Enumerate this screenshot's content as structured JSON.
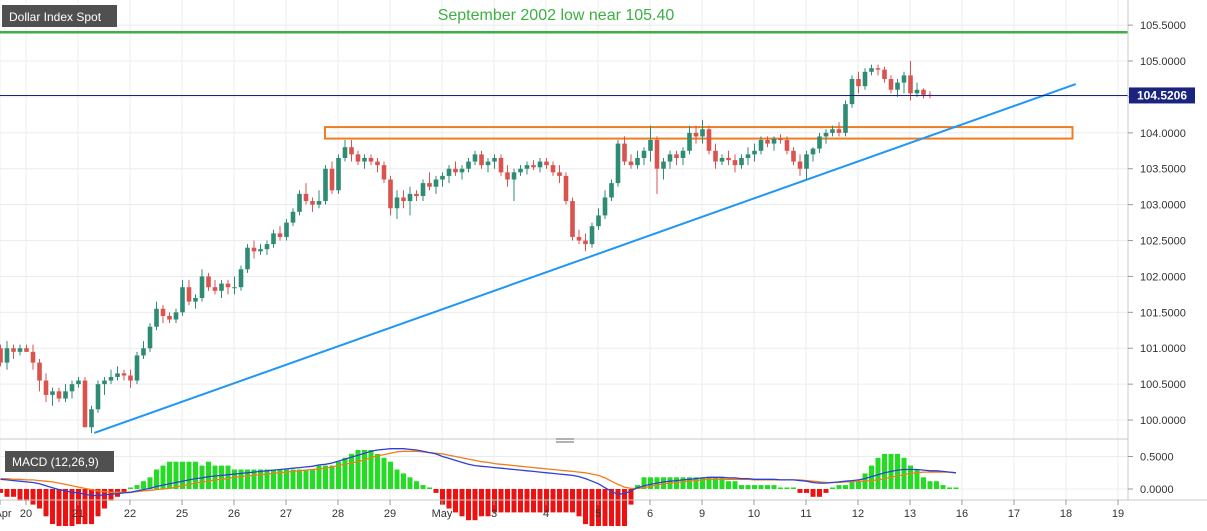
{
  "main_chart": {
    "symbol": "Dollar Index Spot",
    "annotation": "September 2002 low near 105.40",
    "current_price_label": "104.5206"
  },
  "macd_panel": {
    "label": "MACD (12,26,9)",
    "y_ticks": [
      {
        "value": 0.5,
        "label": "0.5000"
      },
      {
        "value": 0.0,
        "label": "0.0000"
      }
    ]
  },
  "colors": {
    "up_candle": "#2e8b74",
    "down_candle": "#d9534f",
    "trendline": "#2196f3",
    "resistance_line": "#3cb043",
    "zone_border": "#ef7d22",
    "price_line": "#1a237e",
    "macd_line": "#2f3fd6",
    "signal_line": "#f07d1a",
    "hist_pos": "#22dd22",
    "hist_neg": "#ee1111"
  },
  "chart_data": {
    "type": "candlestick",
    "y_range": [
      99.75,
      105.85
    ],
    "y_ticks": [
      {
        "value": 100.0,
        "label": "100.0000"
      },
      {
        "value": 100.5,
        "label": "100.5000"
      },
      {
        "value": 101.0,
        "label": "101.0000"
      },
      {
        "value": 101.5,
        "label": "101.5000"
      },
      {
        "value": 102.0,
        "label": "102.0000"
      },
      {
        "value": 102.5,
        "label": "102.5000"
      },
      {
        "value": 103.0,
        "label": "103.0000"
      },
      {
        "value": 103.5,
        "label": "103.5000"
      },
      {
        "value": 104.0,
        "label": "104.0000"
      },
      {
        "value": 104.5,
        "label": "104.5000"
      },
      {
        "value": 105.0,
        "label": "105.0000"
      },
      {
        "value": 105.5,
        "label": "105.5000"
      }
    ],
    "x_ticks": [
      {
        "idx": 0,
        "label": "Apr"
      },
      {
        "idx": 4,
        "label": "20"
      },
      {
        "idx": 12,
        "label": "21"
      },
      {
        "idx": 20,
        "label": "22"
      },
      {
        "idx": 28,
        "label": "25"
      },
      {
        "idx": 36,
        "label": "26"
      },
      {
        "idx": 44,
        "label": "27"
      },
      {
        "idx": 52,
        "label": "28"
      },
      {
        "idx": 60,
        "label": "29"
      },
      {
        "idx": 68,
        "label": "May"
      },
      {
        "idx": 76,
        "label": "3"
      },
      {
        "idx": 84,
        "label": "4"
      },
      {
        "idx": 92,
        "label": "5"
      },
      {
        "idx": 100,
        "label": "6"
      },
      {
        "idx": 108,
        "label": "9"
      },
      {
        "idx": 116,
        "label": "10"
      },
      {
        "idx": 124,
        "label": "11"
      },
      {
        "idx": 132,
        "label": "12"
      },
      {
        "idx": 140,
        "label": "13"
      },
      {
        "idx": 148,
        "label": "16"
      },
      {
        "idx": 156,
        "label": "17"
      },
      {
        "idx": 164,
        "label": "18"
      },
      {
        "idx": 172,
        "label": "19"
      }
    ],
    "resistance_level": 105.4,
    "current_price": 104.5206,
    "zone": {
      "from_idx": 50,
      "to_idx": 165,
      "low": 103.92,
      "high": 104.08
    },
    "trendline": {
      "start_idx": 14.5,
      "start": 99.82,
      "end_idx": 165.5,
      "end": 104.68
    },
    "candles": [
      [
        101.0,
        101.05,
        100.75,
        100.8
      ],
      [
        100.8,
        101.1,
        100.7,
        101.0
      ],
      [
        101.0,
        101.05,
        100.85,
        100.95
      ],
      [
        100.95,
        101.05,
        100.9,
        101.0
      ],
      [
        101.0,
        101.05,
        100.95,
        100.95
      ],
      [
        100.95,
        101.05,
        100.7,
        100.8
      ],
      [
        100.8,
        100.85,
        100.4,
        100.55
      ],
      [
        100.55,
        100.65,
        100.25,
        100.35
      ],
      [
        100.35,
        100.45,
        100.2,
        100.4
      ],
      [
        100.4,
        100.45,
        100.25,
        100.3
      ],
      [
        100.3,
        100.5,
        100.25,
        100.4
      ],
      [
        100.4,
        100.55,
        100.3,
        100.5
      ],
      [
        100.5,
        100.6,
        100.45,
        100.55
      ],
      [
        100.55,
        100.6,
        99.9,
        99.9
      ],
      [
        99.9,
        100.2,
        99.82,
        100.15
      ],
      [
        100.15,
        100.55,
        100.1,
        100.5
      ],
      [
        100.5,
        100.6,
        100.35,
        100.55
      ],
      [
        100.55,
        100.7,
        100.5,
        100.6
      ],
      [
        100.6,
        100.75,
        100.55,
        100.65
      ],
      [
        100.65,
        100.7,
        100.55,
        100.62
      ],
      [
        100.62,
        100.7,
        100.45,
        100.55
      ],
      [
        100.55,
        100.95,
        100.5,
        100.9
      ],
      [
        100.9,
        101.1,
        100.85,
        101.0
      ],
      [
        101.0,
        101.35,
        100.95,
        101.3
      ],
      [
        101.3,
        101.65,
        101.25,
        101.55
      ],
      [
        101.55,
        101.6,
        101.35,
        101.45
      ],
      [
        101.45,
        101.5,
        101.35,
        101.4
      ],
      [
        101.4,
        101.55,
        101.35,
        101.5
      ],
      [
        101.5,
        101.95,
        101.45,
        101.85
      ],
      [
        101.85,
        101.95,
        101.6,
        101.65
      ],
      [
        101.65,
        101.75,
        101.55,
        101.7
      ],
      [
        101.7,
        102.1,
        101.65,
        102.0
      ],
      [
        102.0,
        102.05,
        101.8,
        101.85
      ],
      [
        101.85,
        101.95,
        101.75,
        101.8
      ],
      [
        101.8,
        101.95,
        101.7,
        101.9
      ],
      [
        101.9,
        101.95,
        101.75,
        101.85
      ],
      [
        101.85,
        102.0,
        101.75,
        101.85
      ],
      [
        101.85,
        102.15,
        101.8,
        102.1
      ],
      [
        102.1,
        102.45,
        102.05,
        102.4
      ],
      [
        102.4,
        102.5,
        102.25,
        102.35
      ],
      [
        102.35,
        102.45,
        102.3,
        102.38
      ],
      [
        102.38,
        102.5,
        102.3,
        102.45
      ],
      [
        102.45,
        102.65,
        102.4,
        102.6
      ],
      [
        102.6,
        102.7,
        102.5,
        102.55
      ],
      [
        102.55,
        102.8,
        102.5,
        102.75
      ],
      [
        102.75,
        102.95,
        102.7,
        102.9
      ],
      [
        102.9,
        103.2,
        102.85,
        103.15
      ],
      [
        103.15,
        103.3,
        103.0,
        103.05
      ],
      [
        103.05,
        103.1,
        102.9,
        103.0
      ],
      [
        103.0,
        103.2,
        102.95,
        103.05
      ],
      [
        103.05,
        103.55,
        103.0,
        103.5
      ],
      [
        103.5,
        103.6,
        103.15,
        103.2
      ],
      [
        103.2,
        103.7,
        103.15,
        103.65
      ],
      [
        103.65,
        103.9,
        103.6,
        103.8
      ],
      [
        103.8,
        103.9,
        103.6,
        103.7
      ],
      [
        103.7,
        103.75,
        103.55,
        103.6
      ],
      [
        103.6,
        103.7,
        103.5,
        103.65
      ],
      [
        103.65,
        103.7,
        103.55,
        103.6
      ],
      [
        103.6,
        103.65,
        103.45,
        103.55
      ],
      [
        103.55,
        103.6,
        103.3,
        103.35
      ],
      [
        103.35,
        103.4,
        102.85,
        102.95
      ],
      [
        102.95,
        103.2,
        102.8,
        103.1
      ],
      [
        103.1,
        103.2,
        102.95,
        103.05
      ],
      [
        103.05,
        103.25,
        102.85,
        103.15
      ],
      [
        103.15,
        103.2,
        103.05,
        103.12
      ],
      [
        103.12,
        103.35,
        103.05,
        103.3
      ],
      [
        103.3,
        103.45,
        103.2,
        103.25
      ],
      [
        103.25,
        103.4,
        103.15,
        103.35
      ],
      [
        103.35,
        103.45,
        103.25,
        103.4
      ],
      [
        103.4,
        103.55,
        103.3,
        103.5
      ],
      [
        103.5,
        103.6,
        103.4,
        103.45
      ],
      [
        103.45,
        103.55,
        103.35,
        103.5
      ],
      [
        103.5,
        103.65,
        103.45,
        103.6
      ],
      [
        103.6,
        103.75,
        103.55,
        103.7
      ],
      [
        103.7,
        103.75,
        103.5,
        103.55
      ],
      [
        103.55,
        103.65,
        103.45,
        103.6
      ],
      [
        103.6,
        103.7,
        103.5,
        103.65
      ],
      [
        103.65,
        103.7,
        103.4,
        103.45
      ],
      [
        103.45,
        103.55,
        103.25,
        103.35
      ],
      [
        103.35,
        103.5,
        103.05,
        103.45
      ],
      [
        103.45,
        103.55,
        103.4,
        103.5
      ],
      [
        103.5,
        103.6,
        103.42,
        103.55
      ],
      [
        103.55,
        103.62,
        103.48,
        103.52
      ],
      [
        103.52,
        103.65,
        103.45,
        103.6
      ],
      [
        103.6,
        103.65,
        103.5,
        103.55
      ],
      [
        103.55,
        103.6,
        103.4,
        103.45
      ],
      [
        103.45,
        103.55,
        103.3,
        103.4
      ],
      [
        103.4,
        103.45,
        103.0,
        103.05
      ],
      [
        103.05,
        103.1,
        102.5,
        102.55
      ],
      [
        102.55,
        102.65,
        102.45,
        102.5
      ],
      [
        102.5,
        102.6,
        102.35,
        102.45
      ],
      [
        102.45,
        102.75,
        102.4,
        102.7
      ],
      [
        102.7,
        102.95,
        102.65,
        102.85
      ],
      [
        102.85,
        103.2,
        102.8,
        103.1
      ],
      [
        103.1,
        103.35,
        103.05,
        103.3
      ],
      [
        103.3,
        103.9,
        103.25,
        103.85
      ],
      [
        103.85,
        103.95,
        103.55,
        103.6
      ],
      [
        103.6,
        103.7,
        103.5,
        103.55
      ],
      [
        103.55,
        103.75,
        103.5,
        103.65
      ],
      [
        103.65,
        103.8,
        103.55,
        103.75
      ],
      [
        103.75,
        104.1,
        103.6,
        103.9
      ],
      [
        103.9,
        103.95,
        103.15,
        103.5
      ],
      [
        103.5,
        103.65,
        103.35,
        103.6
      ],
      [
        103.6,
        103.75,
        103.5,
        103.7
      ],
      [
        103.7,
        103.75,
        103.55,
        103.65
      ],
      [
        103.65,
        103.8,
        103.55,
        103.75
      ],
      [
        103.75,
        104.1,
        103.7,
        104.0
      ],
      [
        104.0,
        104.1,
        103.85,
        103.95
      ],
      [
        103.95,
        104.18,
        103.85,
        104.05
      ],
      [
        104.05,
        104.1,
        103.7,
        103.75
      ],
      [
        103.75,
        103.85,
        103.5,
        103.6
      ],
      [
        103.6,
        103.7,
        103.55,
        103.65
      ],
      [
        103.65,
        103.75,
        103.55,
        103.62
      ],
      [
        103.62,
        103.7,
        103.45,
        103.55
      ],
      [
        103.55,
        103.7,
        103.5,
        103.65
      ],
      [
        103.65,
        103.8,
        103.55,
        103.7
      ],
      [
        103.7,
        103.85,
        103.6,
        103.75
      ],
      [
        103.75,
        103.95,
        103.7,
        103.9
      ],
      [
        103.9,
        103.95,
        103.8,
        103.85
      ],
      [
        103.85,
        103.95,
        103.75,
        103.92
      ],
      [
        103.92,
        103.98,
        103.85,
        103.9
      ],
      [
        103.9,
        103.95,
        103.7,
        103.75
      ],
      [
        103.75,
        103.8,
        103.55,
        103.6
      ],
      [
        103.6,
        103.7,
        103.4,
        103.5
      ],
      [
        103.5,
        103.75,
        103.35,
        103.7
      ],
      [
        103.7,
        103.8,
        103.6,
        103.78
      ],
      [
        103.78,
        104.0,
        103.72,
        103.95
      ],
      [
        103.95,
        104.05,
        103.85,
        104.0
      ],
      [
        104.0,
        104.1,
        103.95,
        104.05
      ],
      [
        104.05,
        104.15,
        103.95,
        104.0
      ],
      [
        104.0,
        104.45,
        103.95,
        104.4
      ],
      [
        104.4,
        104.8,
        104.35,
        104.75
      ],
      [
        104.75,
        104.85,
        104.55,
        104.65
      ],
      [
        104.65,
        104.9,
        104.6,
        104.85
      ],
      [
        104.85,
        104.95,
        104.8,
        104.9
      ],
      [
        104.9,
        104.95,
        104.8,
        104.88
      ],
      [
        104.88,
        104.92,
        104.7,
        104.75
      ],
      [
        104.75,
        104.8,
        104.55,
        104.6
      ],
      [
        104.6,
        104.75,
        104.5,
        104.7
      ],
      [
        104.7,
        104.85,
        104.55,
        104.8
      ],
      [
        104.8,
        105.0,
        104.45,
        104.55
      ],
      [
        104.55,
        104.7,
        104.5,
        104.6
      ],
      [
        104.6,
        104.62,
        104.48,
        104.53
      ],
      [
        104.53,
        104.58,
        104.48,
        104.52
      ]
    ],
    "macd": [
      0.15,
      0.14,
      0.13,
      0.12,
      0.11,
      0.1,
      0.08,
      0.05,
      0.02,
      -0.01,
      -0.03,
      -0.05,
      -0.06,
      -0.08,
      -0.1,
      -0.1,
      -0.09,
      -0.08,
      -0.07,
      -0.06,
      -0.05,
      -0.03,
      -0.01,
      0.01,
      0.04,
      0.06,
      0.08,
      0.1,
      0.12,
      0.14,
      0.16,
      0.17,
      0.19,
      0.2,
      0.21,
      0.22,
      0.23,
      0.24,
      0.25,
      0.26,
      0.27,
      0.28,
      0.29,
      0.3,
      0.31,
      0.32,
      0.33,
      0.34,
      0.35,
      0.37,
      0.38,
      0.4,
      0.43,
      0.46,
      0.49,
      0.52,
      0.55,
      0.58,
      0.6,
      0.61,
      0.62,
      0.62,
      0.62,
      0.61,
      0.6,
      0.58,
      0.56,
      0.54,
      0.5,
      0.47,
      0.44,
      0.41,
      0.38,
      0.36,
      0.35,
      0.34,
      0.33,
      0.32,
      0.31,
      0.3,
      0.29,
      0.28,
      0.27,
      0.26,
      0.25,
      0.24,
      0.23,
      0.22,
      0.21,
      0.19,
      0.16,
      0.12,
      0.08,
      0.02,
      -0.04,
      -0.08,
      -0.07,
      -0.03,
      0.02,
      0.05,
      0.07,
      0.09,
      0.11,
      0.12,
      0.13,
      0.14,
      0.15,
      0.16,
      0.17,
      0.18,
      0.18,
      0.18,
      0.17,
      0.17,
      0.16,
      0.16,
      0.15,
      0.15,
      0.15,
      0.15,
      0.14,
      0.14,
      0.14,
      0.13,
      0.12,
      0.1,
      0.09,
      0.09,
      0.1,
      0.11,
      0.12,
      0.13,
      0.14,
      0.16,
      0.19,
      0.22,
      0.25,
      0.27,
      0.29,
      0.3,
      0.3,
      0.3,
      0.29,
      0.28,
      0.28,
      0.27,
      0.26,
      0.25
    ],
    "signal": [
      0.16,
      0.16,
      0.15,
      0.15,
      0.14,
      0.14,
      0.13,
      0.12,
      0.11,
      0.09,
      0.07,
      0.05,
      0.03,
      0.01,
      -0.01,
      -0.03,
      -0.04,
      -0.05,
      -0.05,
      -0.05,
      -0.05,
      -0.04,
      -0.03,
      -0.02,
      -0.01,
      0.0,
      0.01,
      0.03,
      0.05,
      0.07,
      0.09,
      0.11,
      0.12,
      0.14,
      0.15,
      0.16,
      0.18,
      0.19,
      0.2,
      0.21,
      0.22,
      0.23,
      0.24,
      0.25,
      0.26,
      0.27,
      0.28,
      0.29,
      0.3,
      0.31,
      0.32,
      0.34,
      0.36,
      0.38,
      0.4,
      0.42,
      0.45,
      0.48,
      0.51,
      0.53,
      0.55,
      0.57,
      0.58,
      0.58,
      0.58,
      0.57,
      0.56,
      0.55,
      0.54,
      0.52,
      0.5,
      0.48,
      0.46,
      0.44,
      0.42,
      0.41,
      0.39,
      0.38,
      0.37,
      0.36,
      0.35,
      0.34,
      0.33,
      0.32,
      0.31,
      0.3,
      0.29,
      0.28,
      0.27,
      0.26,
      0.25,
      0.23,
      0.21,
      0.17,
      0.12,
      0.07,
      0.03,
      0.01,
      0.01,
      0.02,
      0.04,
      0.06,
      0.08,
      0.09,
      0.1,
      0.11,
      0.12,
      0.13,
      0.14,
      0.15,
      0.15,
      0.15,
      0.15,
      0.15,
      0.15,
      0.15,
      0.14,
      0.14,
      0.14,
      0.14,
      0.14,
      0.14,
      0.14,
      0.14,
      0.13,
      0.12,
      0.11,
      0.1,
      0.1,
      0.1,
      0.11,
      0.11,
      0.12,
      0.12,
      0.13,
      0.14,
      0.16,
      0.18,
      0.2,
      0.22,
      0.24,
      0.25,
      0.26,
      0.26,
      0.26,
      0.26,
      0.26,
      0.25
    ]
  }
}
